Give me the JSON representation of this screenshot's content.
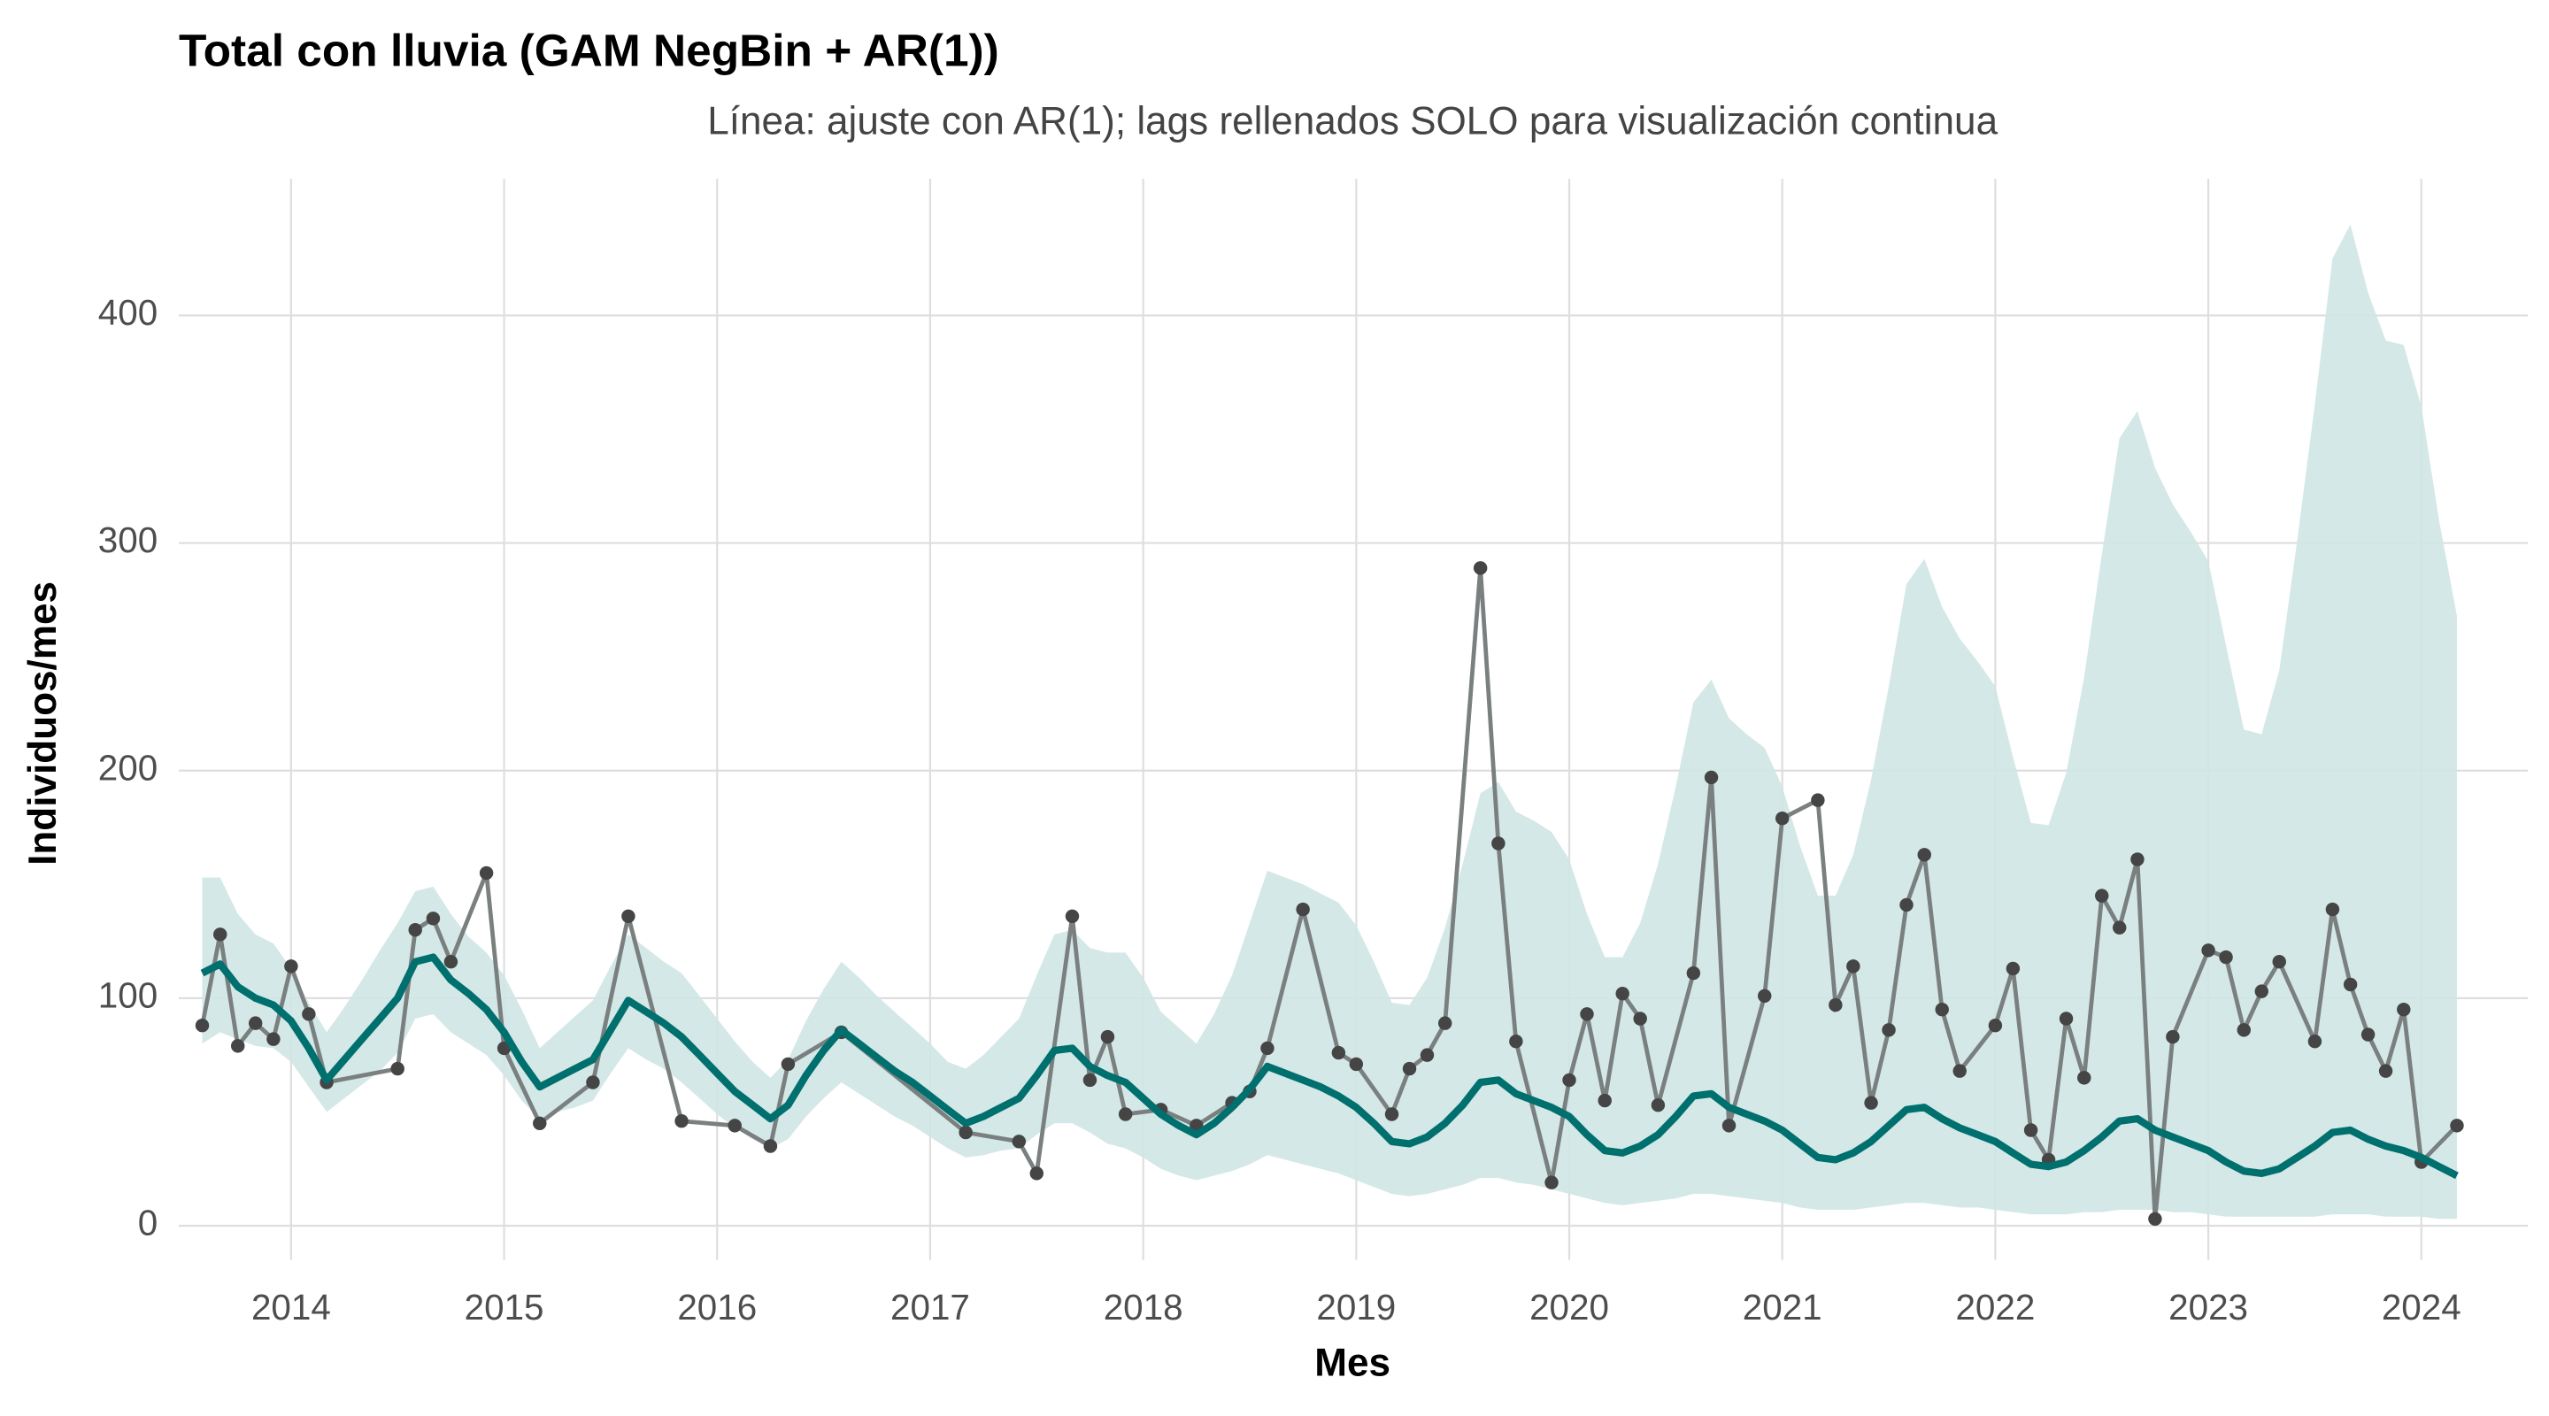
{
  "chart_data": {
    "type": "line",
    "title": "Total con lluvia (GAM NegBin + AR(1))",
    "subtitle": "Línea: ajuste con AR(1); lags rellenados SOLO para visualización continua",
    "xlabel": "Mes",
    "ylabel": "Individuos/mes",
    "xlim": [
      2013.473,
      2024.5
    ],
    "ylim": [
      -15,
      460
    ],
    "xticks": [
      2014,
      2015,
      2016,
      2017,
      2018,
      2019,
      2020,
      2021,
      2022,
      2023,
      2024
    ],
    "yticks": [
      0,
      100,
      200,
      300,
      400
    ],
    "grid": true,
    "x": [
      2013.583,
      2013.667,
      2013.75,
      2013.833,
      2013.917,
      2014,
      2014.083,
      2014.167,
      2014.25,
      2014.333,
      2014.417,
      2014.5,
      2014.583,
      2014.667,
      2014.75,
      2014.833,
      2014.917,
      2015,
      2015.083,
      2015.167,
      2015.25,
      2015.333,
      2015.417,
      2015.5,
      2015.583,
      2015.667,
      2015.75,
      2015.833,
      2015.917,
      2016,
      2016.083,
      2016.167,
      2016.25,
      2016.333,
      2016.417,
      2016.5,
      2016.583,
      2016.667,
      2016.75,
      2016.833,
      2016.917,
      2017,
      2017.083,
      2017.167,
      2017.25,
      2017.333,
      2017.417,
      2017.5,
      2017.583,
      2017.667,
      2017.75,
      2017.833,
      2017.917,
      2018,
      2018.083,
      2018.167,
      2018.25,
      2018.333,
      2018.417,
      2018.5,
      2018.583,
      2018.667,
      2018.75,
      2018.833,
      2018.917,
      2019,
      2019.083,
      2019.167,
      2019.25,
      2019.333,
      2019.417,
      2019.5,
      2019.583,
      2019.667,
      2019.75,
      2019.833,
      2019.917,
      2020,
      2020.083,
      2020.167,
      2020.25,
      2020.333,
      2020.417,
      2020.5,
      2020.583,
      2020.667,
      2020.75,
      2020.833,
      2020.917,
      2021,
      2021.083,
      2021.167,
      2021.25,
      2021.333,
      2021.417,
      2021.5,
      2021.583,
      2021.667,
      2021.75,
      2021.833,
      2021.917,
      2022,
      2022.083,
      2022.167,
      2022.25,
      2022.333,
      2022.417,
      2022.5,
      2022.583,
      2022.667,
      2022.75,
      2022.833,
      2022.917,
      2023,
      2023.083,
      2023.167,
      2023.25,
      2023.333,
      2023.417,
      2023.5,
      2023.583,
      2023.667,
      2023.75,
      2023.833,
      2023.917,
      2024,
      2024.083,
      2024.167
    ],
    "band": {
      "color": "#cfe5e4",
      "upper": [
        153,
        153,
        137,
        128,
        124,
        113,
        98,
        85,
        96,
        108,
        121,
        133,
        147,
        149,
        137,
        127,
        120,
        110,
        95,
        78,
        85,
        92,
        99,
        114,
        128,
        122,
        116,
        111,
        101,
        91,
        81,
        72,
        65,
        73,
        90,
        104,
        116,
        109,
        101,
        94,
        87,
        80,
        72,
        69,
        75,
        83,
        91,
        110,
        128,
        130,
        122,
        120,
        120,
        109,
        94,
        87,
        80,
        93,
        110,
        133,
        156,
        153,
        150,
        146,
        142,
        132,
        116,
        98,
        97,
        109,
        131,
        159,
        190,
        195,
        182,
        178,
        173,
        161,
        137,
        118,
        118,
        133,
        159,
        193,
        230,
        240,
        223,
        216,
        210,
        193,
        167,
        145,
        145,
        163,
        196,
        237,
        282,
        293,
        272,
        258,
        248,
        237,
        206,
        177,
        176,
        199,
        241,
        295,
        346,
        358,
        333,
        317,
        305,
        292,
        255,
        218,
        216,
        244,
        301,
        361,
        425,
        440,
        410,
        389,
        387,
        360,
        310,
        268
      ],
      "lower": [
        80,
        85,
        82,
        79,
        78,
        72,
        61,
        50,
        56,
        62,
        68,
        76,
        91,
        93,
        85,
        80,
        75,
        66,
        55,
        47,
        50,
        52,
        55,
        67,
        78,
        73,
        69,
        63,
        56,
        49,
        43,
        38,
        34,
        38,
        48,
        56,
        63,
        58,
        53,
        48,
        44,
        39,
        34,
        30,
        31,
        33,
        34,
        40,
        45,
        45,
        41,
        36,
        34,
        30,
        25,
        22,
        20,
        22,
        24,
        27,
        31,
        29,
        27,
        25,
        23,
        20,
        17,
        14,
        13,
        14,
        16,
        18,
        21,
        21,
        19,
        18,
        16,
        14,
        12,
        10,
        9,
        10,
        11,
        12,
        14,
        14,
        13,
        12,
        11,
        10,
        8,
        7,
        7,
        7,
        8,
        9,
        10,
        10,
        9,
        8,
        8,
        7,
        6,
        5,
        5,
        5,
        6,
        6,
        7,
        7,
        7,
        6,
        6,
        5,
        4,
        4,
        4,
        4,
        4,
        4,
        5,
        5,
        5,
        4,
        4,
        4,
        3,
        3
      ]
    },
    "series": [
      {
        "color": "#7a7f7f",
        "point_color": "#454545",
        "x": [
          2013.583,
          2013.667,
          2013.75,
          2013.833,
          2013.917,
          2014,
          2014.083,
          2014.167,
          2014.5,
          2014.583,
          2014.667,
          2014.75,
          2014.917,
          2015,
          2015.167,
          2015.417,
          2015.583,
          2015.833,
          2016.083,
          2016.25,
          2016.333,
          2016.583,
          2017.167,
          2017.417,
          2017.5,
          2017.667,
          2017.75,
          2017.833,
          2017.917,
          2018.083,
          2018.25,
          2018.417,
          2018.5,
          2018.583,
          2018.75,
          2018.917,
          2019,
          2019.167,
          2019.25,
          2019.333,
          2019.417,
          2019.583,
          2019.667,
          2019.75,
          2019.917,
          2020,
          2020.083,
          2020.167,
          2020.25,
          2020.333,
          2020.417,
          2020.583,
          2020.667,
          2020.75,
          2020.917,
          2021,
          2021.167,
          2021.25,
          2021.333,
          2021.417,
          2021.5,
          2021.583,
          2021.667,
          2021.75,
          2021.833,
          2022,
          2022.083,
          2022.167,
          2022.25,
          2022.333,
          2022.417,
          2022.5,
          2022.583,
          2022.667,
          2022.75,
          2022.833,
          2023,
          2023.083,
          2023.167,
          2023.25,
          2023.333,
          2023.5,
          2023.583,
          2023.667,
          2023.75,
          2023.833,
          2023.917,
          2024,
          2024.167
        ],
        "values": [
          88,
          128,
          79,
          89,
          82,
          114,
          93,
          63,
          69,
          130,
          135,
          116,
          155,
          78,
          45,
          63,
          136,
          46,
          44,
          35,
          71,
          85,
          41,
          37,
          23,
          136,
          64,
          83,
          49,
          51,
          44,
          54,
          59,
          78,
          139,
          76,
          71,
          49,
          69,
          75,
          89,
          289,
          168,
          81,
          19,
          64,
          93,
          55,
          102,
          91,
          53,
          111,
          197,
          44,
          101,
          179,
          187,
          97,
          114,
          54,
          86,
          141,
          163,
          95,
          68,
          88,
          113,
          42,
          29,
          91,
          65,
          145,
          131,
          161,
          3,
          83,
          121,
          118,
          86,
          103,
          116,
          81,
          139,
          106,
          84,
          68,
          95,
          28,
          44
        ]
      },
      {
        "color": "#00706f",
        "values": [
          111,
          115,
          105,
          100,
          97,
          90,
          78,
          64,
          73,
          82,
          91,
          100,
          116,
          118,
          108,
          102,
          95,
          85,
          72,
          61,
          65,
          69,
          73,
          86,
          99,
          94,
          89,
          83,
          75,
          67,
          59,
          53,
          47,
          53,
          66,
          77,
          86,
          80,
          74,
          68,
          63,
          57,
          51,
          45,
          48,
          52,
          56,
          66,
          77,
          78,
          70,
          66,
          63,
          56,
          49,
          44,
          40,
          45,
          52,
          60,
          70,
          67,
          64,
          61,
          57,
          52,
          45,
          37,
          36,
          39,
          45,
          53,
          63,
          64,
          58,
          55,
          52,
          48,
          40,
          33,
          32,
          35,
          40,
          48,
          57,
          58,
          52,
          49,
          46,
          42,
          36,
          30,
          29,
          32,
          37,
          44,
          51,
          52,
          47,
          43,
          40,
          37,
          32,
          27,
          26,
          28,
          33,
          39,
          46,
          47,
          42,
          39,
          36,
          33,
          28,
          24,
          23,
          25,
          30,
          35,
          41,
          42,
          38,
          35,
          33,
          30,
          26,
          22
        ]
      }
    ]
  }
}
